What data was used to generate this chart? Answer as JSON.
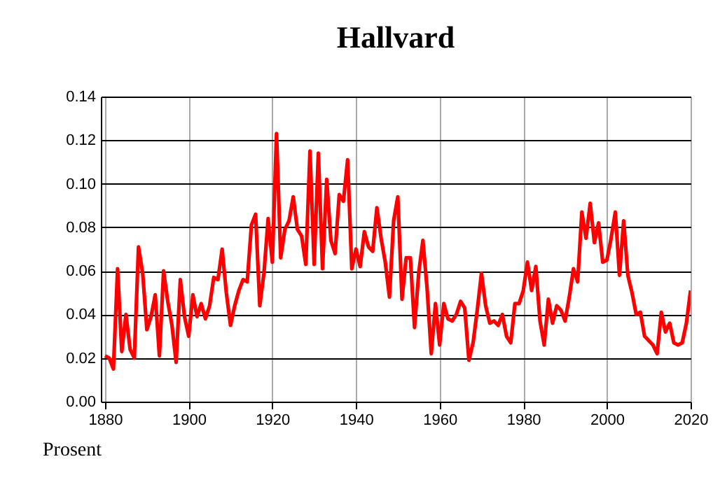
{
  "chart_data": {
    "type": "line",
    "title": "Hallvard",
    "ylabel": "Prosent",
    "x": [
      1880,
      1881,
      1882,
      1883,
      1884,
      1885,
      1886,
      1887,
      1888,
      1889,
      1890,
      1891,
      1892,
      1893,
      1894,
      1895,
      1896,
      1897,
      1898,
      1899,
      1900,
      1901,
      1902,
      1903,
      1904,
      1905,
      1906,
      1907,
      1908,
      1909,
      1910,
      1911,
      1912,
      1913,
      1914,
      1915,
      1916,
      1917,
      1918,
      1919,
      1920,
      1921,
      1922,
      1923,
      1924,
      1925,
      1926,
      1927,
      1928,
      1929,
      1930,
      1931,
      1932,
      1933,
      1934,
      1935,
      1936,
      1937,
      1938,
      1939,
      1940,
      1941,
      1942,
      1943,
      1944,
      1945,
      1946,
      1947,
      1948,
      1949,
      1950,
      1951,
      1952,
      1953,
      1954,
      1955,
      1956,
      1957,
      1958,
      1959,
      1960,
      1961,
      1962,
      1963,
      1964,
      1965,
      1966,
      1967,
      1968,
      1969,
      1970,
      1971,
      1972,
      1973,
      1974,
      1975,
      1976,
      1977,
      1978,
      1979,
      1980,
      1981,
      1982,
      1983,
      1984,
      1985,
      1986,
      1987,
      1988,
      1989,
      1990,
      1991,
      1992,
      1993,
      1994,
      1995,
      1996,
      1997,
      1998,
      1999,
      2000,
      2001,
      2002,
      2003,
      2004,
      2005,
      2006,
      2007,
      2008,
      2009,
      2010,
      2011,
      2012,
      2013,
      2014,
      2015,
      2016,
      2017,
      2018,
      2019,
      2020
    ],
    "series": [
      {
        "color": "#ff0000",
        "values": [
          0.021,
          0.02,
          0.015,
          0.061,
          0.023,
          0.04,
          0.024,
          0.02,
          0.071,
          0.059,
          0.033,
          0.039,
          0.049,
          0.021,
          0.06,
          0.046,
          0.035,
          0.018,
          0.056,
          0.039,
          0.03,
          0.049,
          0.039,
          0.045,
          0.038,
          0.044,
          0.057,
          0.056,
          0.07,
          0.05,
          0.035,
          0.044,
          0.051,
          0.056,
          0.055,
          0.081,
          0.086,
          0.044,
          0.059,
          0.084,
          0.064,
          0.123,
          0.066,
          0.079,
          0.083,
          0.094,
          0.079,
          0.076,
          0.063,
          0.115,
          0.063,
          0.114,
          0.061,
          0.102,
          0.074,
          0.068,
          0.095,
          0.092,
          0.111,
          0.061,
          0.07,
          0.062,
          0.078,
          0.071,
          0.069,
          0.089,
          0.075,
          0.064,
          0.048,
          0.083,
          0.094,
          0.047,
          0.066,
          0.066,
          0.034,
          0.059,
          0.074,
          0.052,
          0.022,
          0.045,
          0.026,
          0.045,
          0.038,
          0.037,
          0.04,
          0.046,
          0.043,
          0.019,
          0.027,
          0.042,
          0.059,
          0.044,
          0.036,
          0.037,
          0.035,
          0.04,
          0.03,
          0.027,
          0.045,
          0.045,
          0.051,
          0.064,
          0.051,
          0.062,
          0.037,
          0.026,
          0.047,
          0.036,
          0.044,
          0.042,
          0.037,
          0.048,
          0.061,
          0.055,
          0.087,
          0.075,
          0.091,
          0.073,
          0.082,
          0.064,
          0.065,
          0.075,
          0.087,
          0.058,
          0.083,
          0.058,
          0.05,
          0.04,
          0.041,
          0.03,
          0.028,
          0.026,
          0.022,
          0.041,
          0.032,
          0.036,
          0.027,
          0.026,
          0.027,
          0.036,
          0.051
        ]
      }
    ],
    "xlim": [
      1879,
      2020
    ],
    "xticks": [
      1880,
      1900,
      1920,
      1940,
      1960,
      1980,
      2000,
      2020
    ],
    "ylim": [
      0,
      0.14
    ],
    "yticks": [
      {
        "value": 0,
        "label": "0.00"
      },
      0.02,
      0.04,
      0.06,
      0.08,
      {
        "value": 0.1,
        "label": "0.10"
      },
      0.12,
      0.14
    ],
    "grid": true
  }
}
